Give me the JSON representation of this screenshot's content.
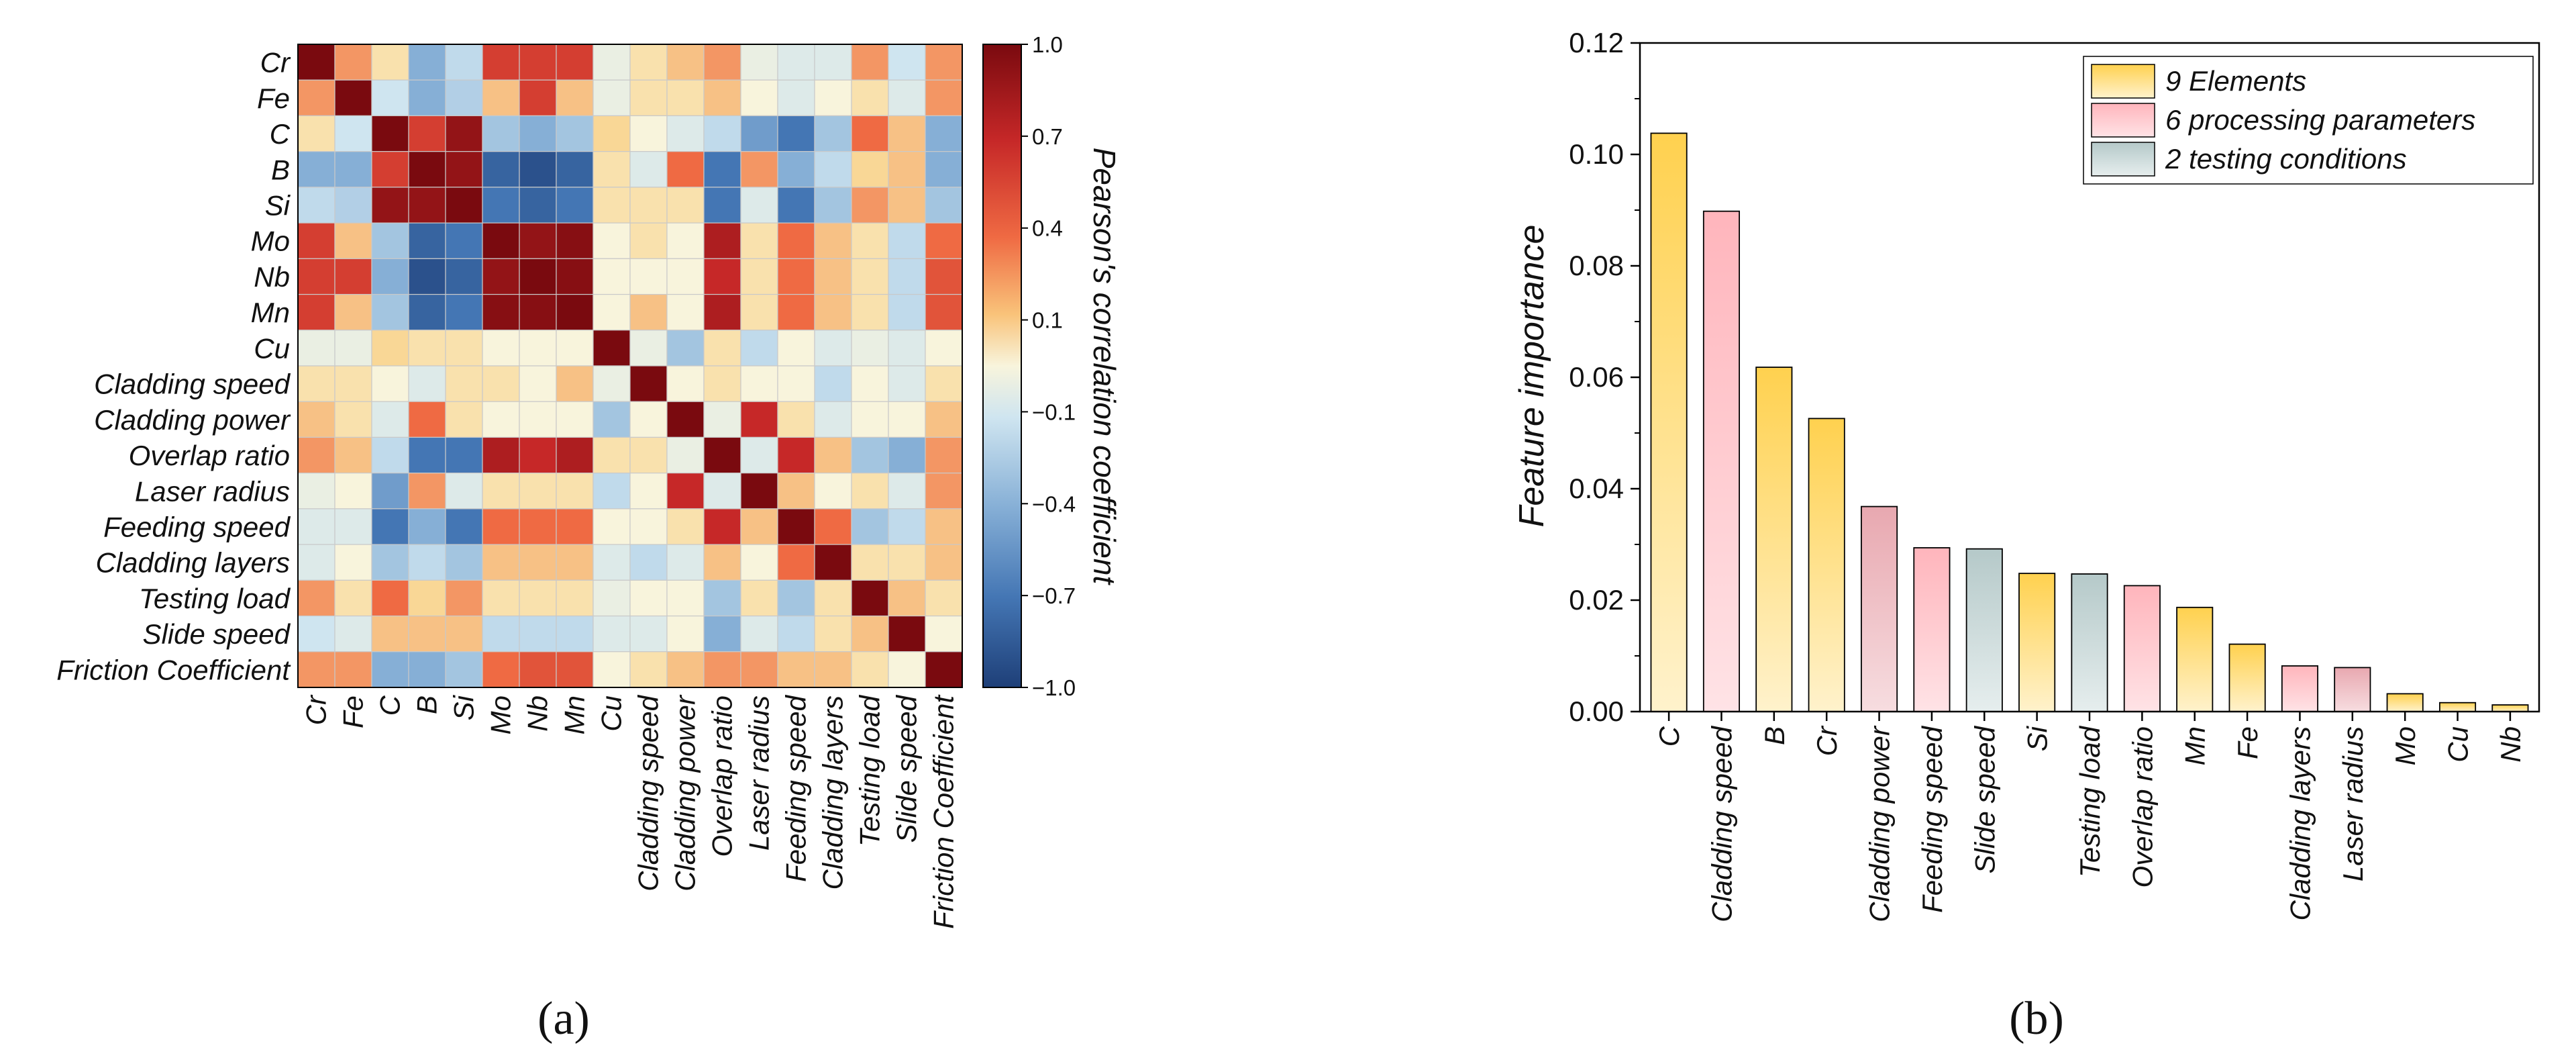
{
  "chart_data": [
    {
      "type": "heatmap",
      "panel_label": "(a)",
      "labels": [
        "Cr",
        "Fe",
        "C",
        "B",
        "Si",
        "Mo",
        "Nb",
        "Mn",
        "Cu",
        "Cladding speed",
        "Cladding power",
        "Overlap ratio",
        "Laser radius",
        "Feeding speed",
        "Cladding layers",
        "Testing load",
        "Slide speed",
        "Friction Coefficient"
      ],
      "matrix": [
        [
          1.0,
          0.3,
          0.1,
          -0.4,
          -0.2,
          0.6,
          0.6,
          0.6,
          -0.05,
          0.1,
          0.2,
          0.3,
          -0.05,
          -0.1,
          -0.1,
          0.3,
          -0.15,
          0.3
        ],
        [
          0.3,
          1.0,
          -0.15,
          -0.4,
          -0.25,
          0.2,
          0.6,
          0.2,
          -0.05,
          0.1,
          0.1,
          0.2,
          0.0,
          -0.1,
          0.0,
          0.1,
          -0.1,
          0.3
        ],
        [
          0.1,
          -0.15,
          1.0,
          0.6,
          0.9,
          -0.3,
          -0.4,
          -0.3,
          0.15,
          0.0,
          -0.1,
          -0.2,
          -0.5,
          -0.7,
          -0.3,
          0.4,
          0.2,
          -0.4
        ],
        [
          -0.4,
          -0.4,
          0.6,
          1.0,
          0.9,
          -0.8,
          -0.9,
          -0.8,
          0.1,
          -0.1,
          0.4,
          -0.7,
          0.3,
          -0.4,
          -0.2,
          0.15,
          0.2,
          -0.4
        ],
        [
          -0.2,
          -0.25,
          0.9,
          0.9,
          1.0,
          -0.7,
          -0.8,
          -0.7,
          0.1,
          0.1,
          0.1,
          -0.7,
          -0.1,
          -0.7,
          -0.3,
          0.3,
          0.2,
          -0.3
        ],
        [
          0.6,
          0.2,
          -0.3,
          -0.8,
          -0.7,
          1.0,
          0.9,
          0.95,
          0.0,
          0.1,
          0.0,
          0.8,
          0.1,
          0.4,
          0.2,
          0.1,
          -0.2,
          0.4
        ],
        [
          0.6,
          0.6,
          -0.4,
          -0.9,
          -0.8,
          0.9,
          1.0,
          0.95,
          0.0,
          0.0,
          0.0,
          0.7,
          0.1,
          0.4,
          0.2,
          0.1,
          -0.2,
          0.5
        ],
        [
          0.6,
          0.2,
          -0.3,
          -0.8,
          -0.7,
          0.95,
          0.95,
          1.0,
          0.0,
          0.2,
          0.0,
          0.8,
          0.1,
          0.4,
          0.2,
          0.1,
          -0.2,
          0.5
        ],
        [
          -0.05,
          -0.05,
          0.15,
          0.1,
          0.1,
          0.0,
          0.0,
          0.0,
          1.0,
          -0.05,
          -0.3,
          0.1,
          -0.2,
          0.0,
          -0.1,
          -0.05,
          -0.1,
          0.0
        ],
        [
          0.1,
          0.1,
          0.0,
          -0.1,
          0.1,
          0.1,
          0.0,
          0.2,
          -0.05,
          1.0,
          0.0,
          0.1,
          0.0,
          0.0,
          -0.2,
          0.0,
          -0.1,
          0.1
        ],
        [
          0.2,
          0.1,
          -0.1,
          0.4,
          0.1,
          0.0,
          0.0,
          0.0,
          -0.3,
          0.0,
          1.0,
          -0.05,
          0.7,
          0.1,
          -0.1,
          0.0,
          0.0,
          0.2
        ],
        [
          0.3,
          0.2,
          -0.2,
          -0.7,
          -0.7,
          0.8,
          0.7,
          0.8,
          0.1,
          0.1,
          -0.05,
          1.0,
          -0.1,
          0.7,
          0.2,
          -0.3,
          -0.4,
          0.3
        ],
        [
          -0.05,
          0.0,
          -0.5,
          0.3,
          -0.1,
          0.1,
          0.1,
          0.1,
          -0.2,
          0.0,
          0.7,
          -0.1,
          1.0,
          0.2,
          0.0,
          0.1,
          -0.1,
          0.3
        ],
        [
          -0.1,
          -0.1,
          -0.7,
          -0.4,
          -0.7,
          0.4,
          0.4,
          0.4,
          0.0,
          0.0,
          0.1,
          0.7,
          0.2,
          1.0,
          0.4,
          -0.3,
          -0.2,
          0.2
        ],
        [
          -0.1,
          0.0,
          -0.3,
          -0.2,
          -0.3,
          0.2,
          0.2,
          0.2,
          -0.1,
          -0.2,
          -0.1,
          0.2,
          0.0,
          0.4,
          1.0,
          0.1,
          0.1,
          0.2
        ],
        [
          0.3,
          0.1,
          0.4,
          0.15,
          0.3,
          0.1,
          0.1,
          0.1,
          -0.05,
          0.0,
          0.0,
          -0.3,
          0.1,
          -0.3,
          0.1,
          1.0,
          0.2,
          0.1
        ],
        [
          -0.15,
          -0.1,
          0.2,
          0.2,
          0.2,
          -0.2,
          -0.2,
          -0.2,
          -0.1,
          -0.1,
          0.0,
          -0.4,
          -0.1,
          -0.2,
          0.1,
          0.2,
          1.0,
          0.0
        ],
        [
          0.3,
          0.3,
          -0.4,
          -0.4,
          -0.3,
          0.4,
          0.5,
          0.5,
          0.0,
          0.1,
          0.2,
          0.3,
          0.3,
          0.2,
          0.2,
          0.1,
          0.0,
          1.0
        ]
      ],
      "colorbar": {
        "label": "Pearson's correlation coefficient",
        "ticks": [
          "1.0",
          "0.7",
          "0.4",
          "0.1",
          "−0.1",
          "−0.4",
          "−0.7",
          "−1.0"
        ],
        "range": [
          -1.0,
          1.0
        ]
      }
    },
    {
      "type": "bar",
      "panel_label": "(b)",
      "ylabel": "Feature importance",
      "ylim": [
        0,
        0.12
      ],
      "yticks": [
        "0.00",
        "0.02",
        "0.04",
        "0.06",
        "0.08",
        "0.10",
        "0.12"
      ],
      "categories": [
        "C",
        "Cladding speed",
        "B",
        "Cr",
        "Cladding power",
        "Feeding speed",
        "Slide speed",
        "Si",
        "Testing load",
        "Overlap ratio",
        "Mn",
        "Fe",
        "Cladding layers",
        "Laser radius",
        "Mo",
        "Cu",
        "Nb"
      ],
      "values": [
        0.1038,
        0.0898,
        0.0618,
        0.0526,
        0.0368,
        0.0294,
        0.0292,
        0.0248,
        0.0247,
        0.0226,
        0.0187,
        0.0121,
        0.0082,
        0.0079,
        0.0032,
        0.0016,
        0.0012
      ],
      "groups": [
        "element",
        "processing",
        "element",
        "element",
        "processing",
        "processing",
        "testing",
        "element",
        "testing",
        "processing",
        "element",
        "element",
        "processing",
        "processing",
        "element",
        "element",
        "element"
      ],
      "legend": [
        {
          "key": "element",
          "label": "9 Elements",
          "color": "#FFD45A"
        },
        {
          "key": "processing",
          "label": "6 processing parameters",
          "color": "#FFB5BC"
        },
        {
          "key": "testing",
          "label": "2 testing conditions",
          "color": "#B9CCCC"
        }
      ],
      "legend_position": "top-right"
    }
  ]
}
